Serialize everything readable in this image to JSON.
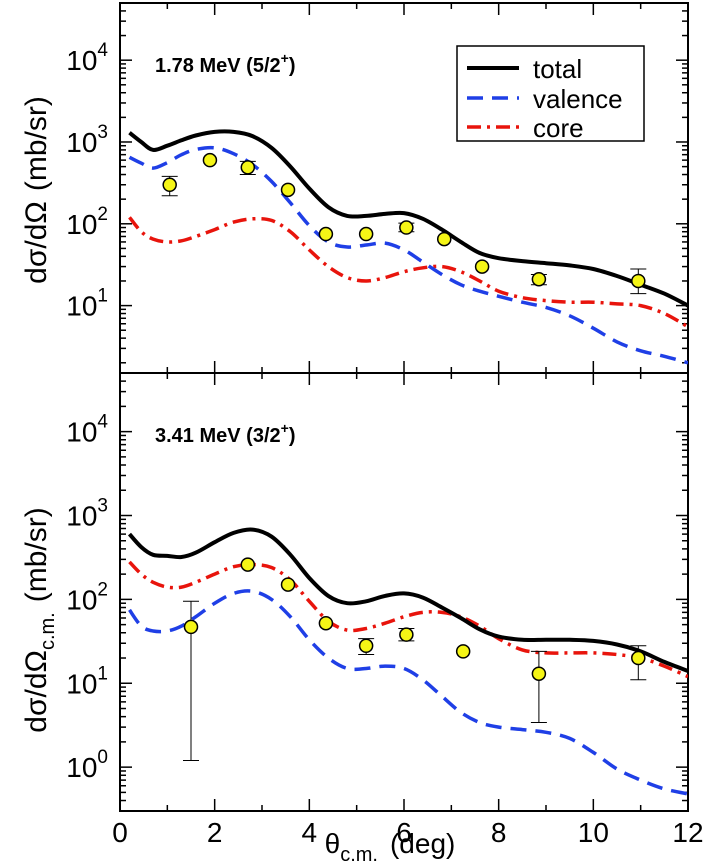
{
  "figure": {
    "xlabel_main": "θ",
    "xlabel_sub": "c.m.",
    "xlabel_unit": "(deg)"
  },
  "chart_data": [
    {
      "type": "line",
      "panel": "top",
      "annotation": {
        "main": "1.78 MeV (5/2",
        "sup": "+",
        "end": ")"
      },
      "ylabel": {
        "main": "dσ/dΩ",
        "sub": "",
        "unit": "(mb/sr)"
      },
      "x_range": [
        0,
        12
      ],
      "y_range": [
        1.5,
        50000
      ],
      "y_scale": "log",
      "x_ticks": [
        0,
        2,
        4,
        6,
        8,
        10,
        12
      ],
      "y_ticks": [
        {
          "value": 10,
          "base": "10",
          "exp": "1"
        },
        {
          "value": 100,
          "base": "10",
          "exp": "2"
        },
        {
          "value": 1000,
          "base": "10",
          "exp": "3"
        },
        {
          "value": 10000,
          "base": "10",
          "exp": "4"
        }
      ],
      "legend": {
        "position": "top-right",
        "entries": [
          "total",
          "valence",
          "core"
        ]
      },
      "series": [
        {
          "name": "total",
          "color": "#000000",
          "style": "solid",
          "x": [
            0.2,
            0.45,
            0.7,
            1.0,
            1.3,
            1.6,
            2.0,
            2.4,
            2.8,
            3.2,
            3.6,
            4.0,
            4.4,
            4.8,
            5.2,
            5.6,
            6.0,
            6.4,
            6.8,
            7.2,
            7.6,
            8.0,
            8.5,
            9.0,
            9.5,
            10.0,
            10.5,
            11.0,
            11.5,
            12.0
          ],
          "y": [
            1300,
            1000,
            800,
            900,
            1050,
            1200,
            1330,
            1330,
            1180,
            850,
            500,
            270,
            160,
            125,
            125,
            132,
            135,
            115,
            85,
            60,
            44,
            38,
            35,
            33,
            31,
            28,
            23,
            18,
            14,
            10
          ]
        },
        {
          "name": "valence",
          "color": "#1f3fe6",
          "style": "dashed",
          "x": [
            0.2,
            0.45,
            0.7,
            1.0,
            1.3,
            1.6,
            2.0,
            2.4,
            2.8,
            3.2,
            3.6,
            4.0,
            4.4,
            4.8,
            5.2,
            5.6,
            6.0,
            6.4,
            6.8,
            7.2,
            7.6,
            8.0,
            8.5,
            9.0,
            9.5,
            10.0,
            10.5,
            11.0,
            11.5,
            12.0
          ],
          "y": [
            650,
            550,
            480,
            560,
            700,
            810,
            850,
            720,
            530,
            330,
            180,
            95,
            60,
            52,
            55,
            58,
            48,
            34,
            24,
            18,
            15,
            13,
            11,
            9.5,
            7.5,
            5.3,
            3.6,
            2.8,
            2.4,
            2.0
          ]
        },
        {
          "name": "core",
          "color": "#e8140c",
          "style": "dashdot",
          "x": [
            0.2,
            0.45,
            0.7,
            1.0,
            1.3,
            1.6,
            2.0,
            2.4,
            2.8,
            3.2,
            3.6,
            4.0,
            4.4,
            4.8,
            5.2,
            5.6,
            6.0,
            6.4,
            6.8,
            7.2,
            7.6,
            8.0,
            8.5,
            9.0,
            9.5,
            10.0,
            10.5,
            11.0,
            11.5,
            12.0
          ],
          "y": [
            120,
            80,
            65,
            60,
            62,
            70,
            85,
            105,
            115,
            110,
            80,
            48,
            30,
            22,
            20,
            22,
            26,
            29,
            30,
            26,
            20,
            15,
            12.5,
            11.5,
            11,
            11,
            10.5,
            10,
            8,
            5.5
          ]
        }
      ],
      "data_points": {
        "x": [
          1.05,
          1.9,
          2.7,
          3.55,
          4.35,
          5.2,
          6.05,
          6.85,
          7.65,
          8.85,
          10.95
        ],
        "y": [
          300,
          600,
          490,
          260,
          75,
          75,
          90,
          65,
          30,
          21,
          20
        ],
        "err_low": [
          220,
          600,
          400,
          260,
          75,
          75,
          80,
          65,
          30,
          18,
          14
        ],
        "err_high": [
          380,
          600,
          580,
          260,
          75,
          75,
          102,
          65,
          30,
          24,
          28
        ]
      }
    },
    {
      "type": "line",
      "panel": "bottom",
      "annotation": {
        "main": "3.41 MeV (3/2",
        "sup": "+",
        "end": ")"
      },
      "ylabel": {
        "main": "dσ/dΩ",
        "sub": "c.m.",
        "unit": "(mb/sr)"
      },
      "x_range": [
        0,
        12
      ],
      "y_range": [
        0.3,
        50000
      ],
      "y_scale": "log",
      "x_ticks": [
        0,
        2,
        4,
        6,
        8,
        10,
        12
      ],
      "y_ticks": [
        {
          "value": 1,
          "base": "10",
          "exp": "0"
        },
        {
          "value": 10,
          "base": "10",
          "exp": "1"
        },
        {
          "value": 100,
          "base": "10",
          "exp": "2"
        },
        {
          "value": 1000,
          "base": "10",
          "exp": "3"
        },
        {
          "value": 10000,
          "base": "10",
          "exp": "4"
        }
      ],
      "series": [
        {
          "name": "total",
          "color": "#000000",
          "style": "solid",
          "x": [
            0.2,
            0.45,
            0.7,
            1.0,
            1.3,
            1.6,
            2.0,
            2.4,
            2.8,
            3.2,
            3.6,
            4.0,
            4.4,
            4.8,
            5.2,
            5.6,
            6.0,
            6.4,
            6.8,
            7.2,
            7.6,
            8.0,
            8.5,
            9.0,
            9.5,
            10.0,
            10.5,
            11.0,
            11.5,
            12.0
          ],
          "y": [
            600,
            420,
            340,
            330,
            320,
            360,
            480,
            620,
            680,
            560,
            340,
            180,
            110,
            90,
            95,
            110,
            118,
            105,
            80,
            60,
            44,
            36,
            33,
            33,
            33,
            32,
            29,
            24,
            18,
            14
          ]
        },
        {
          "name": "valence",
          "color": "#1f3fe6",
          "style": "dashed",
          "x": [
            0.2,
            0.45,
            0.7,
            1.0,
            1.3,
            1.6,
            2.0,
            2.4,
            2.8,
            3.2,
            3.6,
            4.0,
            4.4,
            4.8,
            5.2,
            5.6,
            6.0,
            6.4,
            6.8,
            7.2,
            7.6,
            8.0,
            8.5,
            9.0,
            9.5,
            10.0,
            10.5,
            11.0,
            11.5,
            12.0
          ],
          "y": [
            75,
            48,
            42,
            42,
            48,
            62,
            90,
            118,
            125,
            100,
            62,
            33,
            20,
            15,
            15,
            16,
            15,
            11,
            7,
            4.5,
            3.4,
            3.0,
            2.8,
            2.6,
            2.2,
            1.5,
            0.95,
            0.7,
            0.55,
            0.48
          ]
        },
        {
          "name": "core",
          "color": "#e8140c",
          "style": "dashdot",
          "x": [
            0.2,
            0.45,
            0.7,
            1.0,
            1.3,
            1.6,
            2.0,
            2.4,
            2.8,
            3.2,
            3.6,
            4.0,
            4.4,
            4.8,
            5.2,
            5.6,
            6.0,
            6.4,
            6.8,
            7.2,
            7.6,
            8.0,
            8.5,
            9.0,
            9.5,
            10.0,
            10.5,
            11.0,
            11.5,
            12.0
          ],
          "y": [
            280,
            200,
            160,
            140,
            140,
            160,
            200,
            245,
            260,
            240,
            170,
            95,
            55,
            43,
            45,
            52,
            62,
            70,
            70,
            62,
            48,
            34,
            25,
            23,
            23,
            23,
            22,
            20,
            16,
            12
          ]
        }
      ],
      "data_points": {
        "x": [
          1.5,
          2.7,
          3.55,
          4.35,
          5.2,
          6.05,
          7.25,
          8.85,
          10.95
        ],
        "y": [
          47,
          260,
          150,
          52,
          28,
          38,
          24,
          13,
          20
        ],
        "err_low": [
          1.2,
          260,
          150,
          52,
          22,
          32,
          24,
          3.4,
          11
        ],
        "err_high": [
          95,
          260,
          150,
          52,
          34,
          45,
          24,
          24,
          28
        ]
      }
    }
  ]
}
